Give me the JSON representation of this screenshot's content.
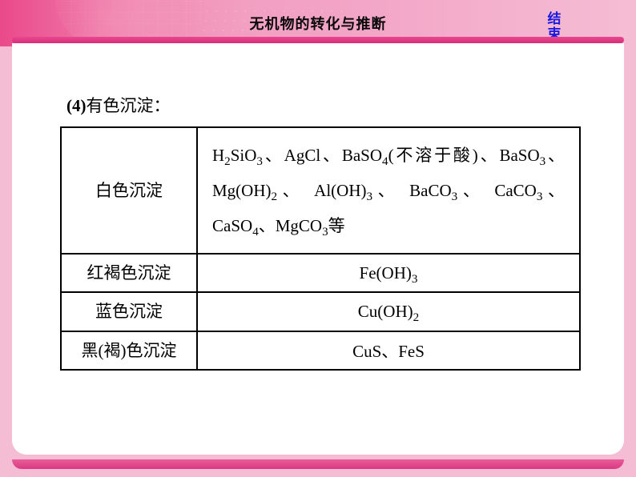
{
  "header": {
    "title": "无机物的转化与推断",
    "endLink": "结束"
  },
  "section": {
    "number": "(4)",
    "title": "有色沉淀："
  },
  "table_style": {
    "border_color": "#000000",
    "border_width": 2,
    "font_size": 21,
    "col1_width": 170,
    "total_width": 650,
    "row1_height": 140,
    "row_other_height": 44
  },
  "rows": [
    {
      "label": "白色沉淀",
      "data_html": "H<sub>2</sub>SiO<sub>3</sub><span class='cn'>、</span>AgCl<span class='cn'>、</span>BaSO<sub>4</sub>(<span class='cn'>不溶于酸</span>)<span class='cn'>、</span>BaSO<sub>3</sub><span class='cn'>、</span>Mg(OH)<sub>2</sub><span class='cn'>、&nbsp;</span>Al(OH)<sub>3</sub><span class='cn'>、&nbsp;</span>BaCO<sub>3</sub><span class='cn'>、&nbsp;</span>CaCO<sub>3</sub><span class='cn'>、</span>CaSO<sub>4</sub><span class='cn'>、</span>MgCO<sub>3</sub><span class='cn'>等</span>",
      "center": false
    },
    {
      "label": "红褐色沉淀",
      "data_html": "Fe(OH)<sub>3</sub>",
      "center": true
    },
    {
      "label": "蓝色沉淀",
      "data_html": "Cu(OH)<sub>2</sub>",
      "center": true
    },
    {
      "label": "黑(褐)色沉淀",
      "data_html": "CuS<span class='cn'>、</span>FeS",
      "center": true
    }
  ],
  "colors": {
    "slide_bg": "#f5bdd4",
    "header_gradient_start": "#ea498a",
    "header_gradient_end": "#f5bdd4",
    "accent_bar": "#e84890",
    "content_bg": "#ffffff",
    "link_color": "#1a1ae0",
    "text_color": "#000000"
  }
}
